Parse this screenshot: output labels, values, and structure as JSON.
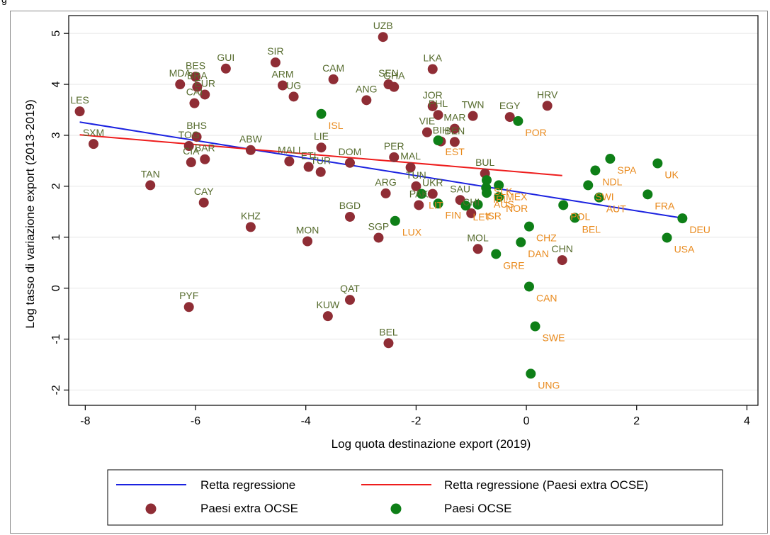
{
  "figure": {
    "caption": "g"
  },
  "colors": {
    "non_oecd": "#8f2d35",
    "oecd": "#0e7f17",
    "non_oecd_label": "#566b2d",
    "oecd_label": "#e98a1d",
    "line_all": "#1b22e0",
    "line_non_oecd": "#ee1d1d"
  },
  "chart_data": {
    "type": "scatter",
    "title": "",
    "xlabel": "Log quota destinazione export (2019)",
    "ylabel": "Log tasso di variazione export (2013-2019)",
    "xlim": [
      -8.3,
      4.2
    ],
    "ylim": [
      -2.3,
      5.35
    ],
    "xticks": [
      -8,
      -6,
      -4,
      -2,
      0,
      2,
      4
    ],
    "yticks": [
      -2,
      -1,
      0,
      1,
      2,
      3,
      4,
      5
    ],
    "grid": "horizontal",
    "legend_position": "bottom",
    "legend": {
      "line_all": "Retta regressione",
      "line_non_oecd": "Retta regressione (Paesi extra OCSE)",
      "non_oecd": "Paesi extra OCSE",
      "oecd": "Paesi OCSE"
    },
    "lines": [
      {
        "name": "Retta regressione",
        "x": [
          -8.1,
          2.8
        ],
        "y": [
          3.26,
          1.38
        ]
      },
      {
        "name": "Retta regressione (Paesi extra OCSE)",
        "x": [
          -8.1,
          0.65
        ],
        "y": [
          3.01,
          2.21
        ]
      }
    ],
    "series": [
      {
        "name": "Paesi extra OCSE",
        "points": [
          {
            "label": "UZB",
            "x": -2.6,
            "y": 4.93
          },
          {
            "label": "LKA",
            "x": -1.7,
            "y": 4.3
          },
          {
            "label": "SIR",
            "x": -4.55,
            "y": 4.43
          },
          {
            "label": "GUI",
            "x": -5.45,
            "y": 4.31
          },
          {
            "label": "BES",
            "x": -6.0,
            "y": 4.15
          },
          {
            "label": "MDA",
            "x": -6.28,
            "y": 4.0
          },
          {
            "label": "BRA",
            "x": -5.97,
            "y": 3.95
          },
          {
            "label": "EUR",
            "x": -5.83,
            "y": 3.8
          },
          {
            "label": "CAI",
            "x": -6.02,
            "y": 3.63
          },
          {
            "label": "ARM",
            "x": -4.42,
            "y": 3.98
          },
          {
            "label": "UG",
            "x": -4.22,
            "y": 3.76
          },
          {
            "label": "CAM",
            "x": -3.5,
            "y": 4.1
          },
          {
            "label": "SEN",
            "x": -2.5,
            "y": 4.0
          },
          {
            "label": "GHA",
            "x": -2.4,
            "y": 3.95
          },
          {
            "label": "ANG",
            "x": -2.9,
            "y": 3.69
          },
          {
            "label": "JOR",
            "x": -1.7,
            "y": 3.57
          },
          {
            "label": "PHL",
            "x": -1.6,
            "y": 3.4
          },
          {
            "label": "TWN",
            "x": -0.97,
            "y": 3.38
          },
          {
            "label": "EGY",
            "x": -0.3,
            "y": 3.36
          },
          {
            "label": "HRV",
            "x": 0.38,
            "y": 3.58
          },
          {
            "label": "VIE",
            "x": -1.8,
            "y": 3.06
          },
          {
            "label": "MAR",
            "x": -1.3,
            "y": 3.13
          },
          {
            "label": "BIH",
            "x": -1.55,
            "y": 2.88
          },
          {
            "label": "BEN",
            "x": -1.3,
            "y": 2.87
          },
          {
            "label": "LES",
            "x": -8.1,
            "y": 3.47
          },
          {
            "label": "SXM",
            "x": -7.85,
            "y": 2.83
          },
          {
            "label": "BHS",
            "x": -5.98,
            "y": 2.97
          },
          {
            "label": "TOG",
            "x": -6.12,
            "y": 2.79
          },
          {
            "label": "BAR",
            "x": -5.83,
            "y": 2.53
          },
          {
            "label": "CIA",
            "x": -6.08,
            "y": 2.47
          },
          {
            "label": "ABW",
            "x": -5.0,
            "y": 2.71
          },
          {
            "label": "LIE",
            "x": -3.72,
            "y": 2.76
          },
          {
            "label": "MALI",
            "x": -4.3,
            "y": 2.49
          },
          {
            "label": "ETI",
            "x": -3.95,
            "y": 2.38
          },
          {
            "label": "TUR",
            "x": -3.73,
            "y": 2.28
          },
          {
            "label": "DOM",
            "x": -3.2,
            "y": 2.46
          },
          {
            "label": "PER",
            "x": -2.4,
            "y": 2.57
          },
          {
            "label": "MAL",
            "x": -2.1,
            "y": 2.37
          },
          {
            "label": "BUL",
            "x": -0.75,
            "y": 2.25
          },
          {
            "label": "TAN",
            "x": -6.82,
            "y": 2.02
          },
          {
            "label": "CAY",
            "x": -5.85,
            "y": 1.68
          },
          {
            "label": "TUN",
            "x": -2.0,
            "y": 2.0
          },
          {
            "label": "UKR",
            "x": -1.7,
            "y": 1.85
          },
          {
            "label": "ARG",
            "x": -2.55,
            "y": 1.86
          },
          {
            "label": "PAK",
            "x": -1.95,
            "y": 1.63
          },
          {
            "label": "SAU",
            "x": -1.2,
            "y": 1.73
          },
          {
            "label": "CHI",
            "x": -1.0,
            "y": 1.47
          },
          {
            "label": "KHZ",
            "x": -5.0,
            "y": 1.2
          },
          {
            "label": "BGD",
            "x": -3.2,
            "y": 1.4
          },
          {
            "label": "SGP",
            "x": -2.68,
            "y": 0.99
          },
          {
            "label": "MON",
            "x": -3.97,
            "y": 0.92
          },
          {
            "label": "MOL",
            "x": -0.88,
            "y": 0.77
          },
          {
            "label": "CHN",
            "x": 0.65,
            "y": 0.55
          },
          {
            "label": "QAT",
            "x": -3.2,
            "y": -0.23
          },
          {
            "label": "PYF",
            "x": -6.12,
            "y": -0.37
          },
          {
            "label": "KUW",
            "x": -3.6,
            "y": -0.55
          },
          {
            "label": "BEL",
            "x": -2.5,
            "y": -1.08
          }
        ]
      },
      {
        "name": "Paesi OCSE",
        "points": [
          {
            "label": "ISL",
            "x": -3.72,
            "y": 3.42
          },
          {
            "label": "POR",
            "x": -0.15,
            "y": 3.28
          },
          {
            "label": "EST",
            "x": -1.6,
            "y": 2.9
          },
          {
            "label": "SPA",
            "x": 1.52,
            "y": 2.54
          },
          {
            "label": "UK",
            "x": 2.38,
            "y": 2.45
          },
          {
            "label": "NDL",
            "x": 1.25,
            "y": 2.31
          },
          {
            "label": "FRA",
            "x": 2.2,
            "y": 1.84
          },
          {
            "label": "SWI",
            "x": 1.12,
            "y": 2.02
          },
          {
            "label": "AUT",
            "x": 1.32,
            "y": 1.78
          },
          {
            "label": "DEU",
            "x": 2.83,
            "y": 1.37
          },
          {
            "label": "USA",
            "x": 2.55,
            "y": 0.99
          },
          {
            "label": "SLK",
            "x": -0.72,
            "y": 2.12
          },
          {
            "label": "MEX",
            "x": -0.5,
            "y": 2.02
          },
          {
            "label": "IRL",
            "x": -0.73,
            "y": 1.97
          },
          {
            "label": "AUS",
            "x": -0.72,
            "y": 1.87
          },
          {
            "label": "NOR",
            "x": -0.5,
            "y": 1.79
          },
          {
            "label": "FIN",
            "x": -1.6,
            "y": 1.66
          },
          {
            "label": "LIT",
            "x": -1.9,
            "y": 1.85
          },
          {
            "label": "LET",
            "x": -1.1,
            "y": 1.62
          },
          {
            "label": "ISR",
            "x": -0.88,
            "y": 1.64
          },
          {
            "label": "POL",
            "x": 0.67,
            "y": 1.63
          },
          {
            "label": "BEL",
            "x": 0.88,
            "y": 1.38
          },
          {
            "label": "LUX",
            "x": -2.38,
            "y": 1.32
          },
          {
            "label": "CHZ",
            "x": 0.05,
            "y": 1.21
          },
          {
            "label": "DAN",
            "x": -0.1,
            "y": 0.9
          },
          {
            "label": "GRE",
            "x": -0.55,
            "y": 0.67
          },
          {
            "label": "CAN",
            "x": 0.05,
            "y": 0.03
          },
          {
            "label": "SWE",
            "x": 0.16,
            "y": -0.75
          },
          {
            "label": "UNG",
            "x": 0.08,
            "y": -1.68
          }
        ]
      }
    ]
  }
}
